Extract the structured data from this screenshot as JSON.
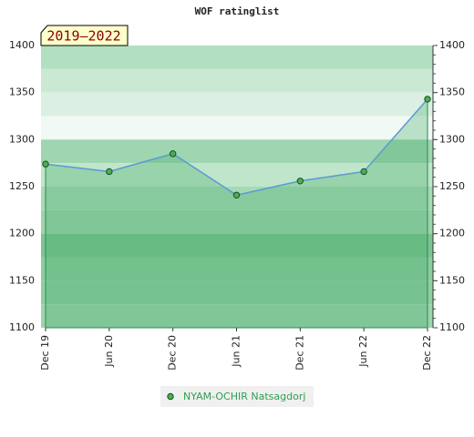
{
  "chart_data": {
    "type": "line",
    "title": "WOF ratinglist",
    "annotation": "2019–2022",
    "categories": [
      "Dec 19",
      "Jun 20",
      "Dec 20",
      "Jun 21",
      "Dec 21",
      "Jun 22",
      "Dec 22"
    ],
    "series": [
      {
        "name": "NYAM-OCHIR Natsagdorj",
        "color": "#5b9bd5",
        "values": [
          1274,
          1266,
          1285,
          1241,
          1256,
          1266,
          1343
        ]
      }
    ],
    "ylim": [
      1100,
      1400
    ],
    "yticks": [
      1100,
      1150,
      1200,
      1250,
      1300,
      1350,
      1400
    ]
  }
}
